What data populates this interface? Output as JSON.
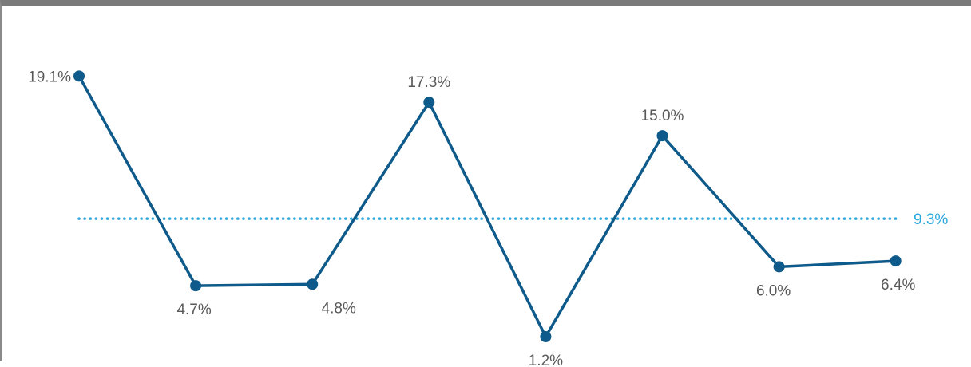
{
  "chart_data": {
    "type": "line",
    "categories": [
      "",
      "",
      "",
      "",
      "",
      "",
      "",
      ""
    ],
    "series": [
      {
        "values": [
          19.1,
          4.7,
          4.8,
          17.3,
          1.2,
          15.0,
          6.0,
          6.4
        ],
        "labels": [
          "19.1%",
          "4.7%",
          "4.8%",
          "17.3%",
          "1.2%",
          "15.0%",
          "6.0%",
          "6.4%"
        ],
        "color": "#0e5a8a"
      }
    ],
    "average": {
      "value": 9.3,
      "label": "9.3%",
      "color": "#2aa8df",
      "style": "dotted"
    },
    "label_color": "#595959",
    "ylim": [
      0,
      20
    ],
    "grid": false,
    "legend": "none"
  }
}
